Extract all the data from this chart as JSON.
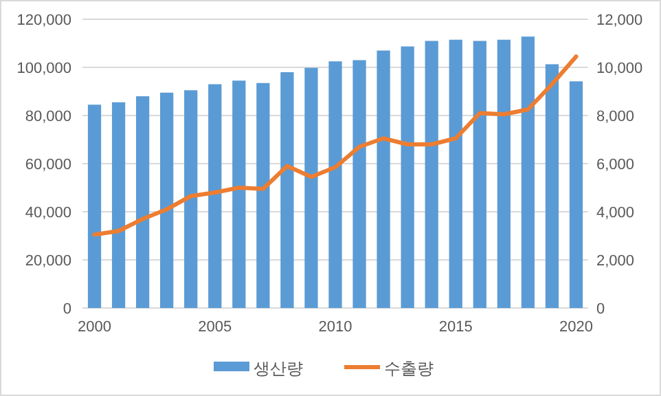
{
  "chart_data": {
    "type": "bar",
    "x": [
      2000,
      2001,
      2002,
      2003,
      2004,
      2005,
      2006,
      2007,
      2008,
      2009,
      2010,
      2011,
      2012,
      2013,
      2014,
      2015,
      2016,
      2017,
      2018,
      2019,
      2020
    ],
    "series": [
      {
        "name": "생산량",
        "color": "#5b9bd5",
        "values": [
          84500,
          85500,
          88000,
          89500,
          90500,
          93000,
          94500,
          93500,
          98000,
          99800,
          102500,
          103000,
          107000,
          108700,
          111000,
          111500,
          111000,
          111500,
          112800,
          101300,
          94200
        ]
      },
      {
        "name": "수출량",
        "type": "line",
        "axis": "y2",
        "color": "#ed7d31",
        "values": [
          3050,
          3200,
          3700,
          4100,
          4650,
          4800,
          5000,
          4950,
          5900,
          5450,
          5850,
          6700,
          7050,
          6800,
          6800,
          7050,
          8100,
          8050,
          8250,
          9300,
          10450
        ]
      }
    ],
    "xlim": [
      1999.5,
      2020.5
    ],
    "xticks": [
      2000,
      2005,
      2010,
      2015,
      2020
    ],
    "ylim": [
      0,
      120000
    ],
    "yticks": [
      {
        "value": 0,
        "label": "0"
      },
      {
        "value": 20000,
        "label": "20,000"
      },
      {
        "value": 40000,
        "label": "40,000"
      },
      {
        "value": 60000,
        "label": "60,000"
      },
      {
        "value": 80000,
        "label": "80,000"
      },
      {
        "value": 100000,
        "label": "100,000"
      },
      {
        "value": 120000,
        "label": "120,000"
      }
    ],
    "y2lim": [
      0,
      12000
    ],
    "y2ticks": [
      {
        "value": 0,
        "label": "0"
      },
      {
        "value": 2000,
        "label": "2,000"
      },
      {
        "value": 4000,
        "label": "4,000"
      },
      {
        "value": 6000,
        "label": "6,000"
      },
      {
        "value": 8000,
        "label": "8,000"
      },
      {
        "value": 10000,
        "label": "10,000"
      },
      {
        "value": 12000,
        "label": "12,000"
      }
    ],
    "grid": "y",
    "legend": "bottom",
    "marker": "none",
    "line_style": "solid"
  }
}
